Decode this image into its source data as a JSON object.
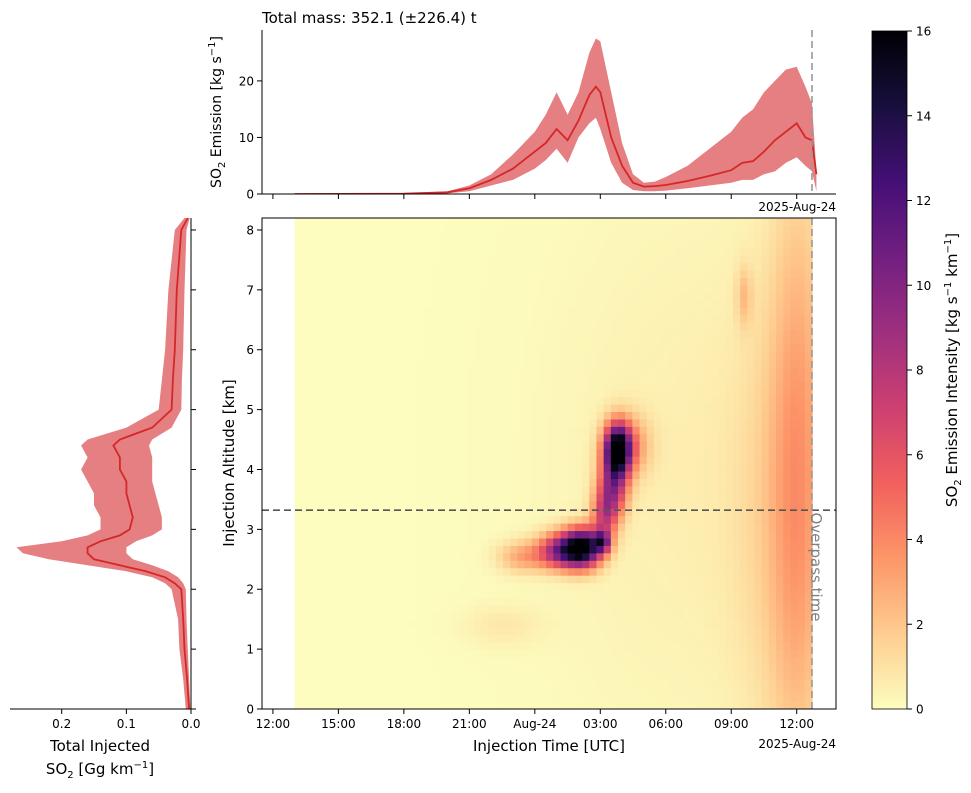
{
  "chart_data": [
    {
      "type": "area",
      "title": "Total mass: 352.1 (±226.4) t",
      "ylabel_main": "SO",
      "ylabel_sub": "2",
      "ylabel_rest": " Emission [kg s",
      "ylabel_sup": "−1",
      "ylabel_end": "]",
      "ylim": [
        0,
        29
      ],
      "yticks": [
        0,
        10,
        20
      ],
      "xlim_hours": [
        -12.5,
        13.8
      ],
      "date_label": "2025-Aug-24",
      "line_color": "#d62728",
      "band_color": "#e57f82",
      "series": [
        {
          "x_hours": [
            -11,
            -6,
            -4,
            -3,
            -2,
            -1,
            -0.5,
            0,
            0.5,
            1,
            1.5,
            2,
            2.5,
            2.8,
            3,
            3.5,
            4,
            4.5,
            5,
            5.5,
            6,
            7,
            8,
            9,
            9.5,
            10,
            10.5,
            11,
            11.5,
            12,
            12.4,
            12.7,
            12.9
          ],
          "mean": [
            0,
            0.05,
            0.3,
            1,
            2.5,
            4.5,
            6,
            7.5,
            9,
            11.5,
            9.5,
            13,
            17.5,
            19,
            18,
            10,
            5,
            2,
            1.3,
            1.4,
            1.6,
            2.3,
            3.2,
            4.2,
            5.5,
            5.8,
            7.5,
            9.5,
            11,
            12.5,
            10,
            9.5,
            3.5
          ],
          "upper": [
            0,
            0.1,
            0.5,
            1.5,
            3.5,
            7,
            9,
            11,
            14,
            18,
            14,
            18,
            25,
            27.5,
            27,
            18,
            9,
            3.5,
            2,
            2.2,
            3,
            5,
            8,
            11,
            13.5,
            15,
            18,
            20,
            22,
            22.5,
            19,
            16,
            4
          ],
          "lower": [
            0,
            0,
            0.1,
            0.5,
            1.5,
            2.5,
            3.5,
            4.5,
            6,
            8,
            5.5,
            10,
            12.5,
            13.5,
            11.5,
            5.5,
            2,
            0.7,
            0.5,
            0.5,
            0.6,
            1,
            1.5,
            2,
            2.5,
            2.5,
            3.5,
            4,
            5.5,
            6.5,
            5,
            4,
            0.5
          ]
        }
      ]
    },
    {
      "type": "area",
      "xlabel_line1": "Total Injected",
      "xlabel_line2_main": "SO",
      "xlabel_line2_sub": "2",
      "xlabel_line2_rest": " [Gg km",
      "xlabel_line2_sup": "−1",
      "xlabel_line2_end": "]",
      "xlim": [
        0.28,
        0.0
      ],
      "xticks": [
        "0.2",
        "0.1",
        "0.0"
      ],
      "xtick_values": [
        0.2,
        0.1,
        0.0
      ],
      "series": [
        {
          "alt_km": [
            0,
            0.5,
            1,
            1.5,
            2,
            2.1,
            2.2,
            2.3,
            2.4,
            2.5,
            2.6,
            2.7,
            2.8,
            2.9,
            3,
            3.2,
            3.4,
            3.6,
            3.8,
            4,
            4.2,
            4.4,
            4.5,
            4.7,
            5,
            5.5,
            6,
            7,
            8,
            8.2
          ],
          "mean": [
            0.003,
            0.006,
            0.01,
            0.012,
            0.015,
            0.025,
            0.04,
            0.07,
            0.11,
            0.15,
            0.16,
            0.16,
            0.14,
            0.11,
            0.095,
            0.09,
            0.095,
            0.1,
            0.1,
            0.11,
            0.11,
            0.12,
            0.11,
            0.06,
            0.03,
            0.028,
            0.025,
            0.022,
            0.015,
            0.005
          ],
          "upper": [
            0.008,
            0.012,
            0.018,
            0.02,
            0.03,
            0.04,
            0.06,
            0.1,
            0.16,
            0.22,
            0.26,
            0.27,
            0.2,
            0.16,
            0.14,
            0.14,
            0.15,
            0.15,
            0.16,
            0.17,
            0.16,
            0.17,
            0.16,
            0.1,
            0.05,
            0.045,
            0.04,
            0.035,
            0.025,
            0.01
          ],
          "lower": [
            0.001,
            0.003,
            0.005,
            0.007,
            0.008,
            0.012,
            0.02,
            0.035,
            0.06,
            0.09,
            0.1,
            0.1,
            0.085,
            0.06,
            0.045,
            0.045,
            0.05,
            0.055,
            0.06,
            0.06,
            0.06,
            0.065,
            0.06,
            0.03,
            0.015,
            0.014,
            0.012,
            0.01,
            0.007,
            0.002
          ]
        }
      ]
    },
    {
      "type": "heatmap",
      "xlabel": "Injection Time [UTC]",
      "ylabel": "Injection Altitude [km]",
      "xticks": [
        "12:00",
        "15:00",
        "18:00",
        "21:00",
        "Aug-24",
        "03:00",
        "06:00",
        "09:00",
        "12:00"
      ],
      "xtick_hours": [
        -12,
        -9,
        -6,
        -3,
        0,
        3,
        6,
        9,
        12
      ],
      "xlim_hours": [
        -12.5,
        13.8
      ],
      "data_range_hours": [
        -11,
        12.7
      ],
      "date_label": "2025-Aug-24",
      "ylim": [
        0,
        8.2
      ],
      "yticks": [
        0,
        1,
        2,
        3,
        4,
        5,
        6,
        7,
        8
      ],
      "overpass_hour": 12.7,
      "overpass_label": "Overpass time",
      "hline_altitude_km": 3.32,
      "colorbar": {
        "label_main": "SO",
        "label_sub": "2",
        "label_rest": " Emission Intensity [kg s",
        "label_sup1": "−1",
        "label_mid": " km",
        "label_sup2": "−1",
        "label_end": "]",
        "range": [
          0,
          16
        ],
        "ticks": [
          0,
          2,
          4,
          6,
          8,
          10,
          12,
          14,
          16
        ],
        "colormap": "magma_r",
        "stops": [
          "#fcfdbf",
          "#fecd90",
          "#fd9668",
          "#f1605d",
          "#cd4071",
          "#9e2f7f",
          "#721f81",
          "#440f76",
          "#180f3d",
          "#000004"
        ]
      },
      "blobs": [
        {
          "t": 2.2,
          "alt": 2.7,
          "sig_t": 0.6,
          "sig_alt": 0.22,
          "v": 15
        },
        {
          "t": 1.2,
          "alt": 2.65,
          "sig_t": 0.7,
          "sig_alt": 0.2,
          "v": 9
        },
        {
          "t": -0.5,
          "alt": 2.55,
          "sig_t": 0.8,
          "sig_alt": 0.18,
          "v": 3
        },
        {
          "t": 3.8,
          "alt": 4.35,
          "sig_t": 0.4,
          "sig_alt": 0.28,
          "v": 15
        },
        {
          "t": 3.6,
          "alt": 3.75,
          "sig_t": 0.45,
          "sig_alt": 0.35,
          "v": 8
        },
        {
          "t": 3.2,
          "alt": 3.25,
          "sig_t": 0.4,
          "sig_alt": 0.3,
          "v": 6
        },
        {
          "t": 3.1,
          "alt": 2.8,
          "sig_t": 0.25,
          "sig_alt": 0.12,
          "v": 8
        },
        {
          "t": 4.2,
          "alt": 4.4,
          "sig_t": 0.7,
          "sig_alt": 0.35,
          "v": 4
        },
        {
          "t": 9.6,
          "alt": 6.9,
          "sig_t": 0.25,
          "sig_alt": 0.35,
          "v": 1.8
        },
        {
          "t": 12.1,
          "alt": 4.0,
          "sig_t": 0.9,
          "sig_alt": 3.5,
          "v": 2.6
        },
        {
          "t": 11.2,
          "alt": 3.2,
          "sig_t": 1.5,
          "sig_alt": 2.8,
          "v": 1.2
        },
        {
          "t": 7.5,
          "alt": 4.0,
          "sig_t": 5.0,
          "sig_alt": 3.5,
          "v": 0.55
        },
        {
          "t": -1.5,
          "alt": 1.4,
          "sig_t": 1.3,
          "sig_alt": 0.25,
          "v": 0.7
        }
      ]
    }
  ]
}
